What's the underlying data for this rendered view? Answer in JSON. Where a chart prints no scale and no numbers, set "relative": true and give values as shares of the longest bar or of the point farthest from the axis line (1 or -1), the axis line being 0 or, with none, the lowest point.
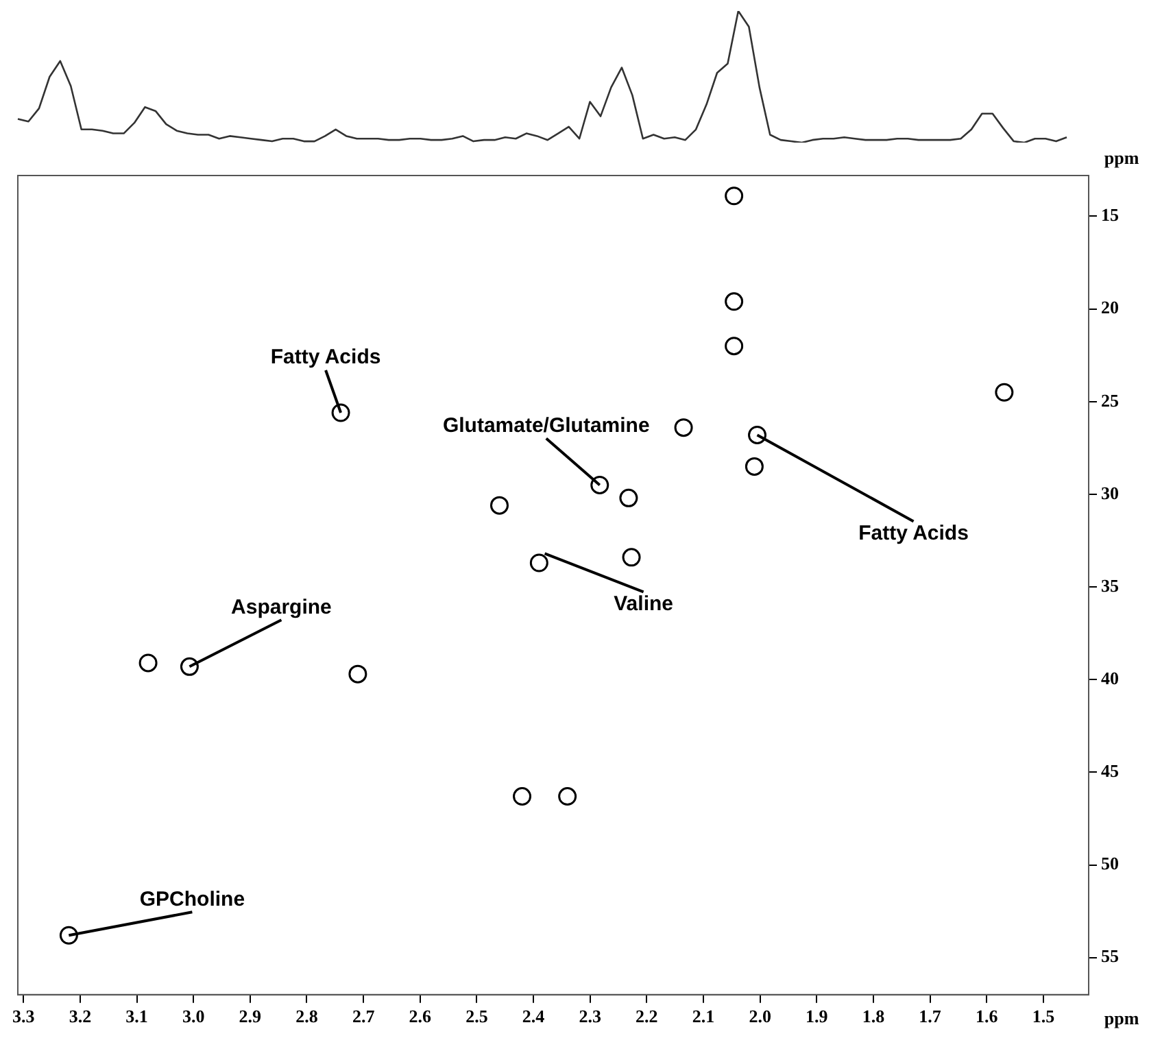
{
  "chart_data": [
    {
      "type": "line",
      "relative": true,
      "marker": "none",
      "categories": [
        null,
        null,
        null,
        null,
        null,
        null,
        null,
        null,
        null,
        null,
        null,
        null,
        null,
        null,
        null,
        null,
        null,
        null,
        null,
        null,
        null,
        null,
        null,
        null,
        null,
        null,
        null,
        null,
        null,
        null,
        null,
        null,
        null,
        null,
        null,
        null,
        null,
        null,
        null,
        null,
        null,
        null,
        null,
        null,
        null,
        null,
        null,
        null,
        null,
        null,
        null,
        null,
        null,
        null,
        null,
        null,
        null,
        null,
        null,
        null,
        null,
        null,
        null,
        null,
        null,
        null,
        null,
        null,
        null,
        null,
        null,
        null,
        null,
        null,
        null,
        null,
        null,
        null,
        null,
        null,
        null,
        null,
        null,
        null,
        null,
        null,
        null,
        null,
        null,
        null,
        null,
        null,
        null,
        null,
        null,
        null,
        null,
        null,
        null,
        null
      ],
      "series": [
        {
          "color": "#333333",
          "values": [
            0.18,
            0.16,
            0.26,
            0.5,
            0.62,
            0.43,
            0.1,
            0.1,
            0.09,
            0.07,
            0.07,
            0.15,
            0.27,
            0.24,
            0.14,
            0.09,
            0.07,
            0.06,
            0.06,
            0.03,
            0.05,
            0.04,
            0.03,
            0.02,
            0.01,
            0.03,
            0.03,
            0.01,
            0.01,
            0.05,
            0.1,
            0.05,
            0.03,
            0.03,
            0.03,
            0.02,
            0.02,
            0.03,
            0.03,
            0.02,
            0.02,
            0.03,
            0.05,
            0.01,
            0.02,
            0.02,
            0.04,
            0.03,
            0.07,
            0.05,
            0.02,
            0.07,
            0.12,
            0.03,
            0.31,
            0.2,
            0.42,
            0.57,
            0.36,
            0.03,
            0.06,
            0.03,
            0.04,
            0.02,
            0.1,
            0.29,
            0.53,
            0.6,
            1,
            0.88,
            0.42,
            0.06,
            0.02,
            0.01,
            0,
            0.02,
            0.03,
            0.03,
            0.04,
            0.03,
            0.02,
            0.02,
            0.02,
            0.03,
            0.03,
            0.02,
            0.02,
            0.02,
            0.02,
            0.03,
            0.1,
            0.22,
            0.22,
            0.11,
            0.01,
            0,
            0.03,
            0.03,
            0.01,
            0.04
          ]
        }
      ]
    },
    {
      "type": "scatter",
      "xlabel": "ppm",
      "ylabel": "ppm",
      "marker": "circle",
      "xlim": [
        3.31,
        1.42
      ],
      "ylim": [
        57,
        12.8
      ],
      "xticks": [
        3.3,
        3.2,
        3.1,
        {
          "value": 3,
          "label": "3.0"
        },
        2.9,
        2.8,
        2.7,
        2.6,
        2.5,
        2.4,
        2.3,
        2.2,
        2.1,
        {
          "value": 2,
          "label": "2.0"
        },
        1.9,
        1.8,
        1.7,
        1.6,
        1.5
      ],
      "yticks": [
        15,
        20,
        25,
        30,
        35,
        40,
        45,
        50,
        55
      ],
      "series": [
        {
          "color": "#000000",
          "x": [
            3.22,
            3.007,
            3.08,
            2.71,
            2.74,
            2.46,
            2.39,
            2.227,
            2.283,
            2.232,
            2.42,
            2.34,
            2.135,
            2.005,
            2.01,
            2.046,
            2.046,
            2.046,
            1.569
          ],
          "values": [
            53.8,
            39.3,
            39.1,
            39.7,
            25.6,
            30.6,
            33.7,
            33.4,
            29.5,
            30.2,
            46.3,
            46.3,
            26.4,
            26.8,
            28.5,
            22,
            19.6,
            13.9,
            24.5
          ]
        }
      ],
      "annotations": [
        {
          "text": "Fatty Acids",
          "x": 2.74,
          "y": 25.6
        },
        {
          "text": "Glutamate/Glutamine",
          "x": 2.283,
          "y": 29.5
        },
        {
          "text": "Fatty Acids",
          "x": 2.005,
          "y": 26.8
        },
        {
          "text": "Valine",
          "x": 2.38,
          "y": 33.2
        },
        {
          "text": "Aspargine",
          "x": 3.007,
          "y": 39.3
        },
        {
          "text": "GPCholine",
          "x": 3.22,
          "y": 53.8
        }
      ]
    }
  ]
}
